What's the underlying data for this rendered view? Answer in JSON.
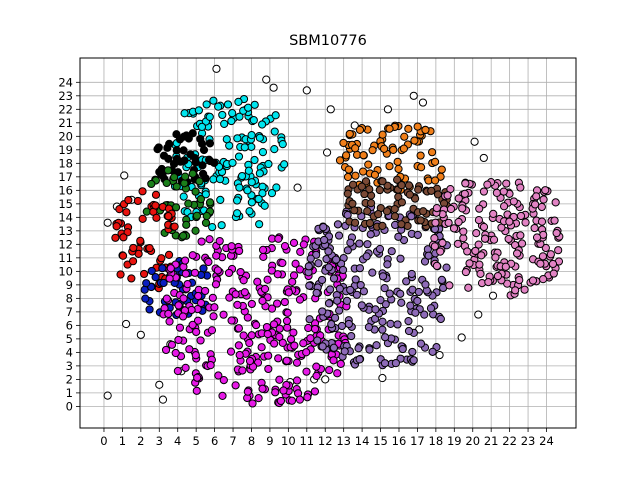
{
  "chart_data": {
    "type": "scatter",
    "title": "SBM10776",
    "xlabel": "",
    "ylabel": "",
    "xlim": [
      -1.3,
      25.6
    ],
    "ylim": [
      -1.6,
      25.8
    ],
    "x_ticks": [
      0,
      1,
      2,
      3,
      4,
      5,
      6,
      7,
      8,
      9,
      10,
      11,
      12,
      13,
      14,
      15,
      16,
      17,
      18,
      19,
      20,
      21,
      22,
      23,
      24
    ],
    "y_ticks": [
      0,
      1,
      2,
      3,
      4,
      5,
      6,
      7,
      8,
      9,
      10,
      11,
      12,
      13,
      14,
      15,
      16,
      17,
      18,
      19,
      20,
      21,
      22,
      23,
      24
    ],
    "grid": true,
    "marker": "circle",
    "marker_edge_color": "#000000",
    "clusters": [
      {
        "color": "#00e5ee",
        "x_range": [
          3.8,
          9.8
        ],
        "y_range": [
          13.2,
          22.8
        ],
        "density": 150
      },
      {
        "color": "#000000",
        "x_range": [
          2.8,
          6.0
        ],
        "y_range": [
          16.5,
          20.3
        ],
        "density": 45
      },
      {
        "color": "#1a7f1a",
        "x_range": [
          2.3,
          5.9
        ],
        "y_range": [
          12.5,
          17.6
        ],
        "density": 45
      },
      {
        "color": "#e8130f",
        "x_range": [
          0.3,
          3.9
        ],
        "y_range": [
          8.6,
          16.0
        ],
        "density": 60
      },
      {
        "color": "#0a1ec0",
        "x_range": [
          2.2,
          5.7
        ],
        "y_range": [
          6.6,
          10.9
        ],
        "density": 45
      },
      {
        "color": "#e619e6",
        "x_range": [
          3.2,
          13.2
        ],
        "y_range": [
          0.2,
          12.9
        ],
        "density": 330
      },
      {
        "color": "#8e6bb8",
        "x_range": [
          11.0,
          18.8
        ],
        "y_range": [
          3.0,
          14.8
        ],
        "density": 240
      },
      {
        "color": "#f07f1a",
        "x_range": [
          12.8,
          18.6
        ],
        "y_range": [
          16.0,
          20.8
        ],
        "density": 80
      },
      {
        "color": "#7b4a36",
        "x_range": [
          12.8,
          18.8
        ],
        "y_range": [
          13.2,
          16.8
        ],
        "density": 75
      },
      {
        "color": "#e283c4",
        "x_range": [
          17.8,
          24.8
        ],
        "y_range": [
          8.2,
          16.8
        ],
        "density": 190
      }
    ],
    "outliers_color": "#ffffff",
    "outliers": [
      [
        0.2,
        0.8
      ],
      [
        1.2,
        6.1
      ],
      [
        3.0,
        1.6
      ],
      [
        3.2,
        0.5
      ],
      [
        3.6,
        4.6
      ],
      [
        6.1,
        25.0
      ],
      [
        8.8,
        24.2
      ],
      [
        9.2,
        23.6
      ],
      [
        11.0,
        23.4
      ],
      [
        12.3,
        22.0
      ],
      [
        13.6,
        20.8
      ],
      [
        15.4,
        22.0
      ],
      [
        16.8,
        23.0
      ],
      [
        17.3,
        22.5
      ],
      [
        20.1,
        19.6
      ],
      [
        20.6,
        18.4
      ],
      [
        1.1,
        17.1
      ],
      [
        0.7,
        14.8
      ],
      [
        0.2,
        13.6
      ],
      [
        1.5,
        15.3
      ],
      [
        11.4,
        2.0
      ],
      [
        10.1,
        1.8
      ],
      [
        12.0,
        2.0
      ],
      [
        15.1,
        2.1
      ],
      [
        18.2,
        3.8
      ],
      [
        19.4,
        5.1
      ],
      [
        20.3,
        6.8
      ],
      [
        21.1,
        8.2
      ],
      [
        13.3,
        17.5
      ],
      [
        12.1,
        18.8
      ],
      [
        10.5,
        16.2
      ],
      [
        2.0,
        5.3
      ],
      [
        4.2,
        2.6
      ],
      [
        16.2,
        4.4
      ],
      [
        17.1,
        5.7
      ]
    ]
  }
}
